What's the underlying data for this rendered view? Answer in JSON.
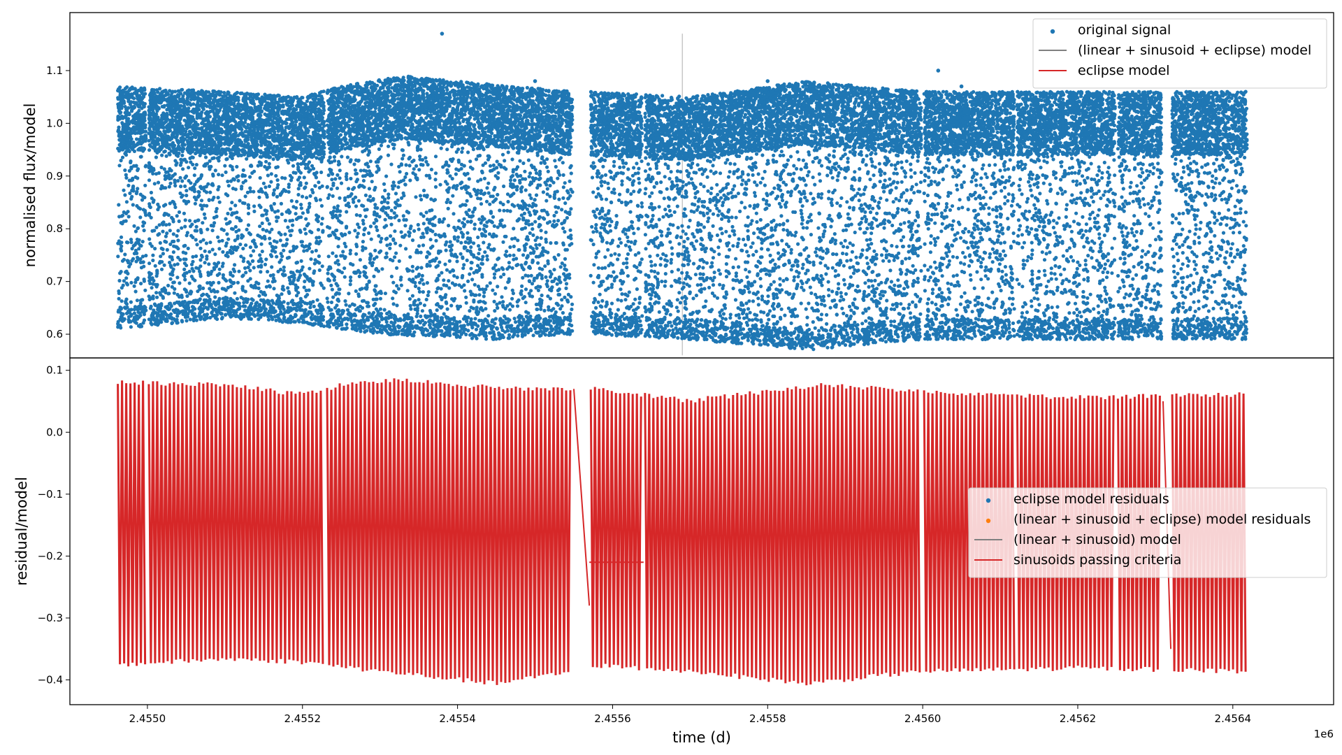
{
  "chart_data": {
    "type": "scatter",
    "x_offset_label": "1e6",
    "xlabel": "time (d)",
    "xlim": [
      2.4549,
      2.45653
    ],
    "x_tick_labels": [
      "2.4550",
      "2.4552",
      "2.4554",
      "2.4556",
      "2.4558",
      "2.4560",
      "2.4562",
      "2.4564"
    ],
    "x_ticks": [
      2.455,
      2.4552,
      2.4554,
      2.4556,
      2.4558,
      2.456,
      2.4562,
      2.4564
    ],
    "segments": [
      [
        2.45496,
        2.455
      ],
      [
        2.455,
        2.45523
      ],
      [
        2.45523,
        2.45555
      ],
      [
        2.45557,
        2.45564
      ],
      [
        2.45564,
        2.456
      ],
      [
        2.456,
        2.45612
      ],
      [
        2.45612,
        2.45625
      ],
      [
        2.45625,
        2.45631
      ],
      [
        2.45632,
        2.45642
      ]
    ],
    "panels": [
      {
        "ylabel": "normalised flux/model",
        "ylim": [
          0.555,
          1.21
        ],
        "y_ticks": [
          0.6,
          0.7,
          0.8,
          0.9,
          1.0,
          1.1
        ],
        "y_tick_labels": [
          "0.6",
          "0.7",
          "0.8",
          "0.9",
          "1.0",
          "1.1"
        ],
        "legend_position": "upper right",
        "legend": [
          {
            "label": "original signal",
            "kind": "marker",
            "color": "#1f77b4"
          },
          {
            "label": "(linear + sinusoid + eclipse) model",
            "kind": "line",
            "color": "#808080"
          },
          {
            "label": "eclipse model",
            "kind": "line",
            "color": "#d62728"
          }
        ],
        "series": [
          {
            "name": "original signal",
            "color": "#1f77b4",
            "upper_envelope": [
              [
                2.45496,
                1.07
              ],
              [
                2.4551,
                1.06
              ],
              [
                2.4552,
                1.05
              ],
              [
                2.45525,
                1.07
              ],
              [
                2.45533,
                1.09
              ],
              [
                2.4554,
                1.08
              ],
              [
                2.45555,
                1.06
              ],
              [
                2.45557,
                1.06
              ],
              [
                2.4557,
                1.05
              ],
              [
                2.4558,
                1.07
              ],
              [
                2.45585,
                1.08
              ],
              [
                2.456,
                1.06
              ],
              [
                2.4562,
                1.06
              ],
              [
                2.45642,
                1.06
              ]
            ],
            "lower_envelope": [
              [
                2.45496,
                0.61
              ],
              [
                2.4551,
                0.63
              ],
              [
                2.4552,
                0.62
              ],
              [
                2.4553,
                0.6
              ],
              [
                2.45545,
                0.59
              ],
              [
                2.45555,
                0.6
              ],
              [
                2.45557,
                0.6
              ],
              [
                2.4557,
                0.59
              ],
              [
                2.45585,
                0.57
              ],
              [
                2.456,
                0.59
              ],
              [
                2.4562,
                0.59
              ],
              [
                2.45642,
                0.59
              ]
            ],
            "outliers": [
              [
                2.45538,
                1.17
              ],
              [
                2.45602,
                1.1
              ],
              [
                2.4558,
                1.08
              ],
              [
                2.4555,
                1.08
              ],
              [
                2.45605,
                1.07
              ]
            ]
          }
        ]
      },
      {
        "ylabel": "residual/model",
        "ylim": [
          -0.44,
          0.12
        ],
        "y_ticks": [
          -0.4,
          -0.3,
          -0.2,
          -0.1,
          0.0,
          0.1
        ],
        "y_tick_labels": [
          "−0.4",
          "−0.3",
          "−0.2",
          "−0.1",
          "0.0",
          "0.1"
        ],
        "legend_position": "center right",
        "legend": [
          {
            "label": "eclipse model residuals",
            "kind": "marker",
            "color": "#1f77b4"
          },
          {
            "label": "(linear + sinusoid + eclipse) model residuals",
            "kind": "marker",
            "color": "#ff7f0e"
          },
          {
            "label": "(linear + sinusoid) model",
            "kind": "line",
            "color": "#808080"
          },
          {
            "label": "sinusoids passing criteria",
            "kind": "line",
            "color": "#d62728"
          }
        ],
        "series": [
          {
            "name": "sinusoids passing criteria",
            "color": "#d62728",
            "upper_envelope": [
              [
                2.45496,
                0.085
              ],
              [
                2.4551,
                0.08
              ],
              [
                2.4552,
                0.065
              ],
              [
                2.45525,
                0.08
              ],
              [
                2.45533,
                0.09
              ],
              [
                2.45545,
                0.075
              ],
              [
                2.45555,
                0.075
              ],
              [
                2.45557,
                0.075
              ],
              [
                2.4557,
                0.055
              ],
              [
                2.4558,
                0.07
              ],
              [
                2.45587,
                0.08
              ],
              [
                2.456,
                0.07
              ],
              [
                2.4562,
                0.06
              ],
              [
                2.45642,
                0.065
              ]
            ],
            "lower_envelope": [
              [
                2.45496,
                -0.38
              ],
              [
                2.4551,
                -0.37
              ],
              [
                2.4552,
                -0.375
              ],
              [
                2.4553,
                -0.39
              ],
              [
                2.45545,
                -0.41
              ],
              [
                2.45555,
                -0.39
              ],
              [
                2.45557,
                -0.38
              ],
              [
                2.4557,
                -0.39
              ],
              [
                2.45585,
                -0.41
              ],
              [
                2.456,
                -0.39
              ],
              [
                2.4562,
                -0.385
              ],
              [
                2.45642,
                -0.39
              ]
            ]
          }
        ]
      }
    ]
  }
}
